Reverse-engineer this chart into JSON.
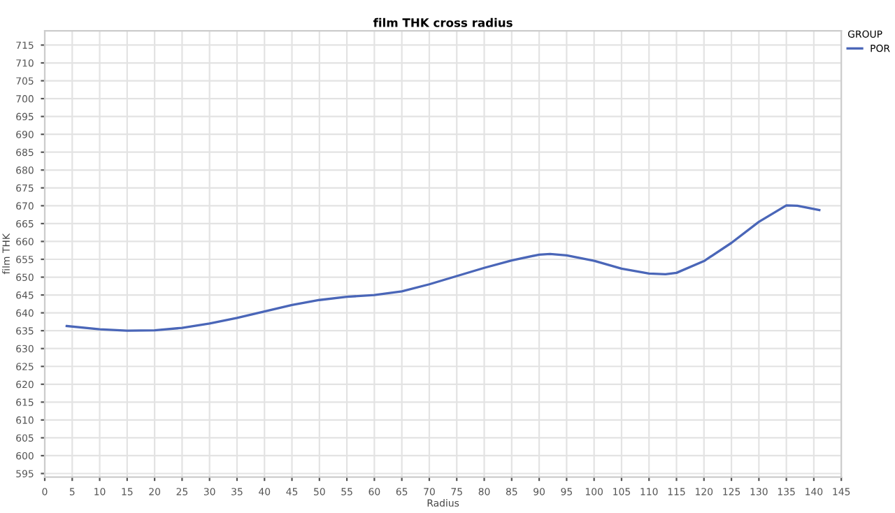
{
  "chart_data": {
    "type": "line",
    "title": "film THK cross radius",
    "xlabel": "Radius",
    "ylabel": "film THK",
    "legend_title": "GROUP",
    "legend": "top right",
    "grid": true,
    "series": [
      {
        "name": "POR",
        "color": "#4a66b8",
        "x": [
          4,
          10,
          15,
          20,
          25,
          30,
          35,
          40,
          45,
          50,
          55,
          60,
          65,
          70,
          75,
          80,
          85,
          90,
          92,
          95,
          100,
          105,
          110,
          113,
          115,
          120,
          125,
          130,
          135,
          137,
          141
        ],
        "values": [
          636.3,
          635.4,
          635.0,
          635.1,
          635.8,
          637.0,
          638.6,
          640.4,
          642.2,
          643.6,
          644.5,
          645.0,
          646.0,
          648.0,
          650.3,
          652.6,
          654.7,
          656.3,
          656.5,
          656.1,
          654.6,
          652.4,
          651.0,
          650.8,
          651.2,
          654.5,
          659.6,
          665.5,
          670.1,
          670.0,
          668.8
        ]
      }
    ],
    "xlim": [
      0,
      145
    ],
    "xticks": [
      0,
      5,
      10,
      15,
      20,
      25,
      30,
      35,
      40,
      45,
      50,
      55,
      60,
      65,
      70,
      75,
      80,
      85,
      90,
      95,
      100,
      105,
      110,
      115,
      120,
      125,
      130,
      135,
      140,
      145
    ],
    "ylim": [
      594,
      719
    ],
    "yticks": [
      595,
      600,
      605,
      610,
      615,
      620,
      625,
      630,
      635,
      640,
      645,
      650,
      655,
      660,
      665,
      670,
      675,
      680,
      685,
      690,
      695,
      700,
      705,
      710,
      715
    ]
  }
}
